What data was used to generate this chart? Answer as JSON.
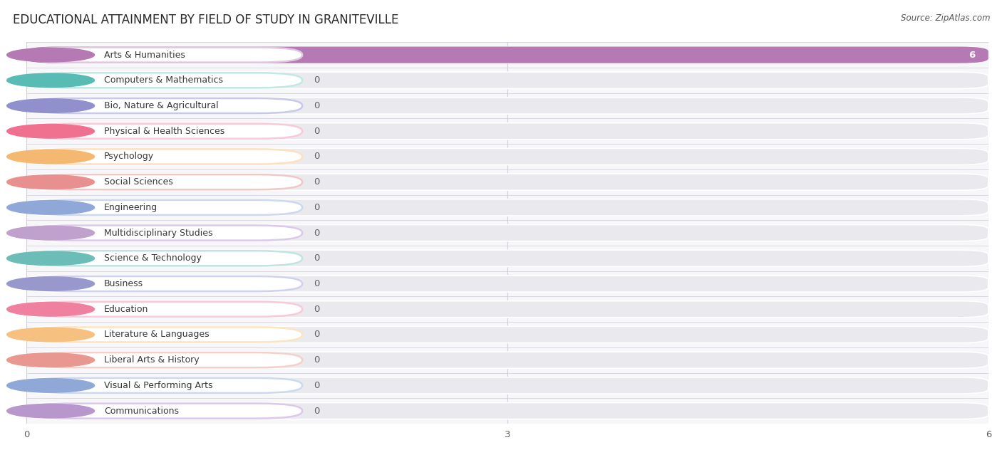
{
  "title": "EDUCATIONAL ATTAINMENT BY FIELD OF STUDY IN GRANITEVILLE",
  "source": "Source: ZipAtlas.com",
  "categories": [
    "Arts & Humanities",
    "Computers & Mathematics",
    "Bio, Nature & Agricultural",
    "Physical & Health Sciences",
    "Psychology",
    "Social Sciences",
    "Engineering",
    "Multidisciplinary Studies",
    "Science & Technology",
    "Business",
    "Education",
    "Literature & Languages",
    "Liberal Arts & History",
    "Visual & Performing Arts",
    "Communications"
  ],
  "values": [
    6,
    0,
    0,
    0,
    0,
    0,
    0,
    0,
    0,
    0,
    0,
    0,
    0,
    0,
    0
  ],
  "bar_colors": [
    "#b57ab4",
    "#58bbb4",
    "#9090cc",
    "#f07090",
    "#f5b870",
    "#e89090",
    "#90a8d8",
    "#c0a0cc",
    "#6cbcb8",
    "#9898cc",
    "#f080a0",
    "#f5c080",
    "#e89890",
    "#90a8d8",
    "#b898cc"
  ],
  "label_pill_colors": [
    "#e0c8e0",
    "#c0e8e4",
    "#c8c8ec",
    "#fac8d8",
    "#fce0c0",
    "#f0c8c8",
    "#ccd8f0",
    "#dcc8ec",
    "#c0e4e0",
    "#d0d0f0",
    "#fac8d8",
    "#fce4c0",
    "#f4d0c8",
    "#ccd8f0",
    "#dcc8ec"
  ],
  "xlim": [
    0,
    6
  ],
  "xticks": [
    0,
    3,
    6
  ],
  "row_bg_color": "#eaeaee",
  "row_sep_color": "#d8d8e0",
  "grid_color": "#d0d0d8",
  "title_fontsize": 12,
  "source_fontsize": 8.5,
  "label_fontsize": 9,
  "value_fontsize": 9.5
}
